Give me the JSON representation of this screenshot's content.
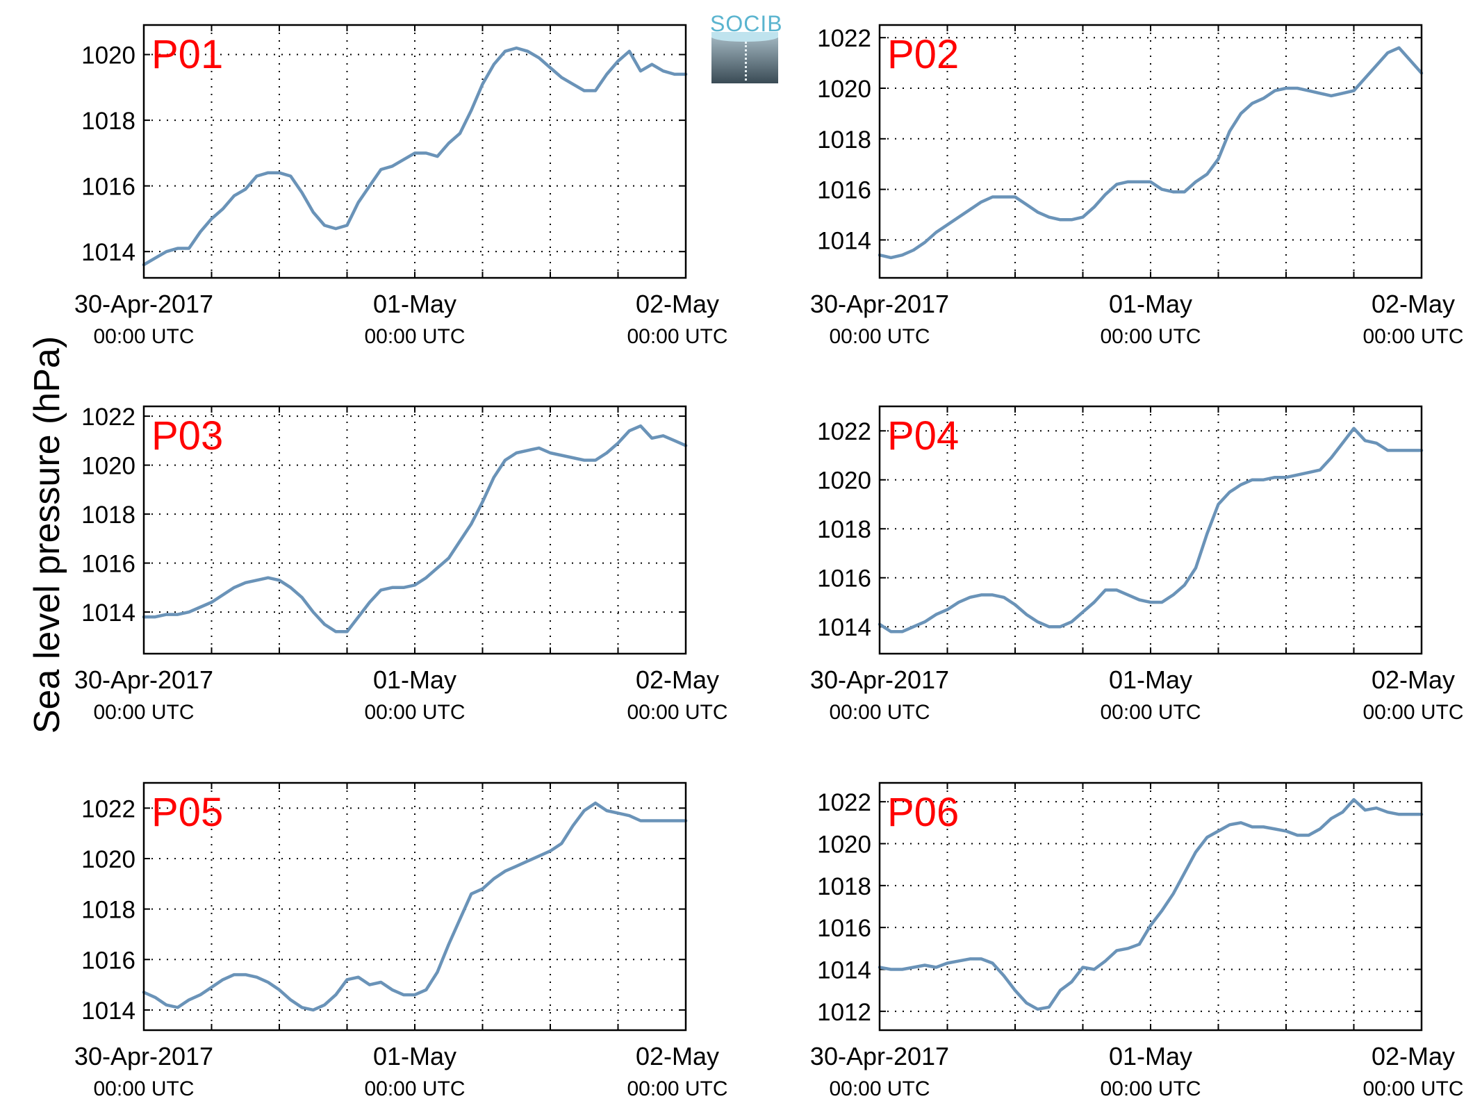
{
  "figure": {
    "ylabel": "Sea level pressure (hPa)",
    "logo_text": "SOCIB",
    "xtick_labels": [
      {
        "line1": "30-Apr-2017",
        "line2": "00:00 UTC"
      },
      {
        "line1": "01-May",
        "line2": "00:00 UTC"
      },
      {
        "line1": "02-May",
        "line2": "00:00 UTC"
      }
    ]
  },
  "colors": {
    "series": "#6a93b8",
    "label": "#ff0000",
    "axis": "#000000",
    "grid": "#000000"
  },
  "chart_data": [
    {
      "type": "line",
      "label": "P01",
      "xlim": [
        "2017-04-30 00:00",
        "2017-05-02 00:00"
      ],
      "ylim": [
        1013.2,
        1020.9
      ],
      "yticks": [
        1014,
        1016,
        1018,
        1020
      ],
      "grid": true,
      "x": [
        "2017-04-30 00:00",
        "2017-04-30 01:00",
        "2017-04-30 02:00",
        "2017-04-30 03:00",
        "2017-04-30 04:00",
        "2017-04-30 05:00",
        "2017-04-30 06:00",
        "2017-04-30 07:00",
        "2017-04-30 08:00",
        "2017-04-30 09:00",
        "2017-04-30 10:00",
        "2017-04-30 11:00",
        "2017-04-30 12:00",
        "2017-04-30 13:00",
        "2017-04-30 14:00",
        "2017-04-30 15:00",
        "2017-04-30 16:00",
        "2017-04-30 17:00",
        "2017-04-30 18:00",
        "2017-04-30 19:00",
        "2017-04-30 20:00",
        "2017-04-30 21:00",
        "2017-04-30 22:00",
        "2017-04-30 23:00",
        "2017-05-01 00:00",
        "2017-05-01 01:00",
        "2017-05-01 02:00",
        "2017-05-01 03:00",
        "2017-05-01 04:00",
        "2017-05-01 05:00",
        "2017-05-01 06:00",
        "2017-05-01 07:00",
        "2017-05-01 08:00",
        "2017-05-01 09:00",
        "2017-05-01 10:00",
        "2017-05-01 11:00",
        "2017-05-01 12:00",
        "2017-05-01 13:00",
        "2017-05-01 14:00",
        "2017-05-01 15:00",
        "2017-05-01 16:00",
        "2017-05-01 17:00",
        "2017-05-01 18:00",
        "2017-05-01 19:00",
        "2017-05-01 20:00",
        "2017-05-01 21:00",
        "2017-05-01 22:00",
        "2017-05-01 23:00",
        "2017-05-02 00:00"
      ],
      "y": [
        1013.6,
        1013.8,
        1014.0,
        1014.1,
        1014.1,
        1014.6,
        1015.0,
        1015.3,
        1015.7,
        1015.9,
        1016.3,
        1016.4,
        1016.4,
        1016.3,
        1015.8,
        1015.2,
        1014.8,
        1014.7,
        1014.8,
        1015.5,
        1016.0,
        1016.5,
        1016.6,
        1016.8,
        1017.0,
        1017.0,
        1016.9,
        1017.3,
        1017.6,
        1018.3,
        1019.1,
        1019.7,
        1020.1,
        1020.2,
        1020.1,
        1019.9,
        1019.6,
        1019.3,
        1019.1,
        1018.9,
        1018.9,
        1019.4,
        1019.8,
        1020.1,
        1019.5,
        1019.7,
        1019.5,
        1019.4,
        1019.4
      ]
    },
    {
      "type": "line",
      "label": "P02",
      "xlim": [
        "2017-04-30 00:00",
        "2017-05-02 00:00"
      ],
      "ylim": [
        1012.5,
        1022.5
      ],
      "yticks": [
        1014,
        1016,
        1018,
        1020,
        1022
      ],
      "grid": true,
      "x": [
        "2017-04-30 00:00",
        "2017-04-30 01:00",
        "2017-04-30 02:00",
        "2017-04-30 03:00",
        "2017-04-30 04:00",
        "2017-04-30 05:00",
        "2017-04-30 06:00",
        "2017-04-30 07:00",
        "2017-04-30 08:00",
        "2017-04-30 09:00",
        "2017-04-30 10:00",
        "2017-04-30 11:00",
        "2017-04-30 12:00",
        "2017-04-30 13:00",
        "2017-04-30 14:00",
        "2017-04-30 15:00",
        "2017-04-30 16:00",
        "2017-04-30 17:00",
        "2017-04-30 18:00",
        "2017-04-30 19:00",
        "2017-04-30 20:00",
        "2017-04-30 21:00",
        "2017-04-30 22:00",
        "2017-04-30 23:00",
        "2017-05-01 00:00",
        "2017-05-01 01:00",
        "2017-05-01 02:00",
        "2017-05-01 03:00",
        "2017-05-01 04:00",
        "2017-05-01 05:00",
        "2017-05-01 06:00",
        "2017-05-01 07:00",
        "2017-05-01 08:00",
        "2017-05-01 09:00",
        "2017-05-01 10:00",
        "2017-05-01 11:00",
        "2017-05-01 12:00",
        "2017-05-01 13:00",
        "2017-05-01 14:00",
        "2017-05-01 15:00",
        "2017-05-01 16:00",
        "2017-05-01 17:00",
        "2017-05-01 18:00",
        "2017-05-01 19:00",
        "2017-05-01 20:00",
        "2017-05-01 21:00",
        "2017-05-01 22:00",
        "2017-05-01 23:00",
        "2017-05-02 00:00"
      ],
      "y": [
        1013.4,
        1013.3,
        1013.4,
        1013.6,
        1013.9,
        1014.3,
        1014.6,
        1014.9,
        1015.2,
        1015.5,
        1015.7,
        1015.7,
        1015.7,
        1015.4,
        1015.1,
        1014.9,
        1014.8,
        1014.8,
        1014.9,
        1015.3,
        1015.8,
        1016.2,
        1016.3,
        1016.3,
        1016.3,
        1016.0,
        1015.9,
        1015.9,
        1016.3,
        1016.6,
        1017.2,
        1018.3,
        1019.0,
        1019.4,
        1019.6,
        1019.9,
        1020.0,
        1020.0,
        1019.9,
        1019.8,
        1019.7,
        1019.8,
        1019.9,
        1020.4,
        1020.9,
        1021.4,
        1021.6,
        1021.1,
        1020.6
      ]
    },
    {
      "type": "line",
      "label": "P03",
      "xlim": [
        "2017-04-30 00:00",
        "2017-05-02 00:00"
      ],
      "ylim": [
        1012.3,
        1022.4
      ],
      "yticks": [
        1014,
        1016,
        1018,
        1020,
        1022
      ],
      "grid": true,
      "x": [
        "2017-04-30 00:00",
        "2017-04-30 01:00",
        "2017-04-30 02:00",
        "2017-04-30 03:00",
        "2017-04-30 04:00",
        "2017-04-30 05:00",
        "2017-04-30 06:00",
        "2017-04-30 07:00",
        "2017-04-30 08:00",
        "2017-04-30 09:00",
        "2017-04-30 10:00",
        "2017-04-30 11:00",
        "2017-04-30 12:00",
        "2017-04-30 13:00",
        "2017-04-30 14:00",
        "2017-04-30 15:00",
        "2017-04-30 16:00",
        "2017-04-30 17:00",
        "2017-04-30 18:00",
        "2017-04-30 19:00",
        "2017-04-30 20:00",
        "2017-04-30 21:00",
        "2017-04-30 22:00",
        "2017-04-30 23:00",
        "2017-05-01 00:00",
        "2017-05-01 01:00",
        "2017-05-01 02:00",
        "2017-05-01 03:00",
        "2017-05-01 04:00",
        "2017-05-01 05:00",
        "2017-05-01 06:00",
        "2017-05-01 07:00",
        "2017-05-01 08:00",
        "2017-05-01 09:00",
        "2017-05-01 10:00",
        "2017-05-01 11:00",
        "2017-05-01 12:00",
        "2017-05-01 13:00",
        "2017-05-01 14:00",
        "2017-05-01 15:00",
        "2017-05-01 16:00",
        "2017-05-01 17:00",
        "2017-05-01 18:00",
        "2017-05-01 19:00",
        "2017-05-01 20:00",
        "2017-05-01 21:00",
        "2017-05-01 22:00",
        "2017-05-01 23:00",
        "2017-05-02 00:00"
      ],
      "y": [
        1013.8,
        1013.8,
        1013.9,
        1013.9,
        1014.0,
        1014.2,
        1014.4,
        1014.7,
        1015.0,
        1015.2,
        1015.3,
        1015.4,
        1015.3,
        1015.0,
        1014.6,
        1014.0,
        1013.5,
        1013.2,
        1013.2,
        1013.8,
        1014.4,
        1014.9,
        1015.0,
        1015.0,
        1015.1,
        1015.4,
        1015.8,
        1016.2,
        1016.9,
        1017.6,
        1018.5,
        1019.5,
        1020.2,
        1020.5,
        1020.6,
        1020.7,
        1020.5,
        1020.4,
        1020.3,
        1020.2,
        1020.2,
        1020.5,
        1020.9,
        1021.4,
        1021.6,
        1021.1,
        1021.2,
        1021.0,
        1020.8
      ]
    },
    {
      "type": "line",
      "label": "P04",
      "xlim": [
        "2017-04-30 00:00",
        "2017-05-02 00:00"
      ],
      "ylim": [
        1012.9,
        1023.0
      ],
      "yticks": [
        1014,
        1016,
        1018,
        1020,
        1022
      ],
      "grid": true,
      "x": [
        "2017-04-30 00:00",
        "2017-04-30 01:00",
        "2017-04-30 02:00",
        "2017-04-30 03:00",
        "2017-04-30 04:00",
        "2017-04-30 05:00",
        "2017-04-30 06:00",
        "2017-04-30 07:00",
        "2017-04-30 08:00",
        "2017-04-30 09:00",
        "2017-04-30 10:00",
        "2017-04-30 11:00",
        "2017-04-30 12:00",
        "2017-04-30 13:00",
        "2017-04-30 14:00",
        "2017-04-30 15:00",
        "2017-04-30 16:00",
        "2017-04-30 17:00",
        "2017-04-30 18:00",
        "2017-04-30 19:00",
        "2017-04-30 20:00",
        "2017-04-30 21:00",
        "2017-04-30 22:00",
        "2017-04-30 23:00",
        "2017-05-01 00:00",
        "2017-05-01 01:00",
        "2017-05-01 02:00",
        "2017-05-01 03:00",
        "2017-05-01 04:00",
        "2017-05-01 05:00",
        "2017-05-01 06:00",
        "2017-05-01 07:00",
        "2017-05-01 08:00",
        "2017-05-01 09:00",
        "2017-05-01 10:00",
        "2017-05-01 11:00",
        "2017-05-01 12:00",
        "2017-05-01 13:00",
        "2017-05-01 14:00",
        "2017-05-01 15:00",
        "2017-05-01 16:00",
        "2017-05-01 17:00",
        "2017-05-01 18:00",
        "2017-05-01 19:00",
        "2017-05-01 20:00",
        "2017-05-01 21:00",
        "2017-05-01 22:00",
        "2017-05-01 23:00",
        "2017-05-02 00:00"
      ],
      "y": [
        1014.1,
        1013.8,
        1013.8,
        1014.0,
        1014.2,
        1014.5,
        1014.7,
        1015.0,
        1015.2,
        1015.3,
        1015.3,
        1015.2,
        1014.9,
        1014.5,
        1014.2,
        1014.0,
        1014.0,
        1014.2,
        1014.6,
        1015.0,
        1015.5,
        1015.5,
        1015.3,
        1015.1,
        1015.0,
        1015.0,
        1015.3,
        1015.7,
        1016.4,
        1017.8,
        1019.0,
        1019.5,
        1019.8,
        1020.0,
        1020.0,
        1020.1,
        1020.1,
        1020.2,
        1020.3,
        1020.4,
        1020.9,
        1021.5,
        1022.1,
        1021.6,
        1021.5,
        1021.2,
        1021.2,
        1021.2,
        1021.2
      ]
    },
    {
      "type": "line",
      "label": "P05",
      "xlim": [
        "2017-04-30 00:00",
        "2017-05-02 00:00"
      ],
      "ylim": [
        1013.2,
        1023.0
      ],
      "yticks": [
        1014,
        1016,
        1018,
        1020,
        1022
      ],
      "grid": true,
      "x": [
        "2017-04-30 00:00",
        "2017-04-30 01:00",
        "2017-04-30 02:00",
        "2017-04-30 03:00",
        "2017-04-30 04:00",
        "2017-04-30 05:00",
        "2017-04-30 06:00",
        "2017-04-30 07:00",
        "2017-04-30 08:00",
        "2017-04-30 09:00",
        "2017-04-30 10:00",
        "2017-04-30 11:00",
        "2017-04-30 12:00",
        "2017-04-30 13:00",
        "2017-04-30 14:00",
        "2017-04-30 15:00",
        "2017-04-30 16:00",
        "2017-04-30 17:00",
        "2017-04-30 18:00",
        "2017-04-30 19:00",
        "2017-04-30 20:00",
        "2017-04-30 21:00",
        "2017-04-30 22:00",
        "2017-04-30 23:00",
        "2017-05-01 00:00",
        "2017-05-01 01:00",
        "2017-05-01 02:00",
        "2017-05-01 03:00",
        "2017-05-01 04:00",
        "2017-05-01 05:00",
        "2017-05-01 06:00",
        "2017-05-01 07:00",
        "2017-05-01 08:00",
        "2017-05-01 09:00",
        "2017-05-01 10:00",
        "2017-05-01 11:00",
        "2017-05-01 12:00",
        "2017-05-01 13:00",
        "2017-05-01 14:00",
        "2017-05-01 15:00",
        "2017-05-01 16:00",
        "2017-05-01 17:00",
        "2017-05-01 18:00",
        "2017-05-01 19:00",
        "2017-05-01 20:00",
        "2017-05-01 21:00",
        "2017-05-01 22:00",
        "2017-05-01 23:00",
        "2017-05-02 00:00"
      ],
      "y": [
        1014.7,
        1014.5,
        1014.2,
        1014.1,
        1014.4,
        1014.6,
        1014.9,
        1015.2,
        1015.4,
        1015.4,
        1015.3,
        1015.1,
        1014.8,
        1014.4,
        1014.1,
        1014.0,
        1014.2,
        1014.6,
        1015.2,
        1015.3,
        1015.0,
        1015.1,
        1014.8,
        1014.6,
        1014.6,
        1014.8,
        1015.5,
        1016.6,
        1017.6,
        1018.6,
        1018.8,
        1019.2,
        1019.5,
        1019.7,
        1019.9,
        1020.1,
        1020.3,
        1020.6,
        1021.3,
        1021.9,
        1022.2,
        1021.9,
        1021.8,
        1021.7,
        1021.5,
        1021.5,
        1021.5,
        1021.5,
        1021.5
      ]
    },
    {
      "type": "line",
      "label": "P06",
      "xlim": [
        "2017-04-30 00:00",
        "2017-05-02 00:00"
      ],
      "ylim": [
        1011.1,
        1022.9
      ],
      "yticks": [
        1012,
        1014,
        1016,
        1018,
        1020,
        1022
      ],
      "grid": true,
      "x": [
        "2017-04-30 00:00",
        "2017-04-30 01:00",
        "2017-04-30 02:00",
        "2017-04-30 03:00",
        "2017-04-30 04:00",
        "2017-04-30 05:00",
        "2017-04-30 06:00",
        "2017-04-30 07:00",
        "2017-04-30 08:00",
        "2017-04-30 09:00",
        "2017-04-30 10:00",
        "2017-04-30 11:00",
        "2017-04-30 12:00",
        "2017-04-30 13:00",
        "2017-04-30 14:00",
        "2017-04-30 15:00",
        "2017-04-30 16:00",
        "2017-04-30 17:00",
        "2017-04-30 18:00",
        "2017-04-30 19:00",
        "2017-04-30 20:00",
        "2017-04-30 21:00",
        "2017-04-30 22:00",
        "2017-04-30 23:00",
        "2017-05-01 00:00",
        "2017-05-01 01:00",
        "2017-05-01 02:00",
        "2017-05-01 03:00",
        "2017-05-01 04:00",
        "2017-05-01 05:00",
        "2017-05-01 06:00",
        "2017-05-01 07:00",
        "2017-05-01 08:00",
        "2017-05-01 09:00",
        "2017-05-01 10:00",
        "2017-05-01 11:00",
        "2017-05-01 12:00",
        "2017-05-01 13:00",
        "2017-05-01 14:00",
        "2017-05-01 15:00",
        "2017-05-01 16:00",
        "2017-05-01 17:00",
        "2017-05-01 18:00",
        "2017-05-01 19:00",
        "2017-05-01 20:00",
        "2017-05-01 21:00",
        "2017-05-01 22:00",
        "2017-05-01 23:00",
        "2017-05-02 00:00"
      ],
      "y": [
        1014.1,
        1014.0,
        1014.0,
        1014.1,
        1014.2,
        1014.1,
        1014.3,
        1014.4,
        1014.5,
        1014.5,
        1014.3,
        1013.7,
        1013.0,
        1012.4,
        1012.1,
        1012.2,
        1013.0,
        1013.4,
        1014.1,
        1014.0,
        1014.4,
        1014.9,
        1015.0,
        1015.2,
        1016.1,
        1016.8,
        1017.6,
        1018.6,
        1019.6,
        1020.3,
        1020.6,
        1020.9,
        1021.0,
        1020.8,
        1020.8,
        1020.7,
        1020.6,
        1020.4,
        1020.4,
        1020.7,
        1021.2,
        1021.5,
        1022.1,
        1021.6,
        1021.7,
        1021.5,
        1021.4,
        1021.4,
        1021.4
      ]
    }
  ]
}
